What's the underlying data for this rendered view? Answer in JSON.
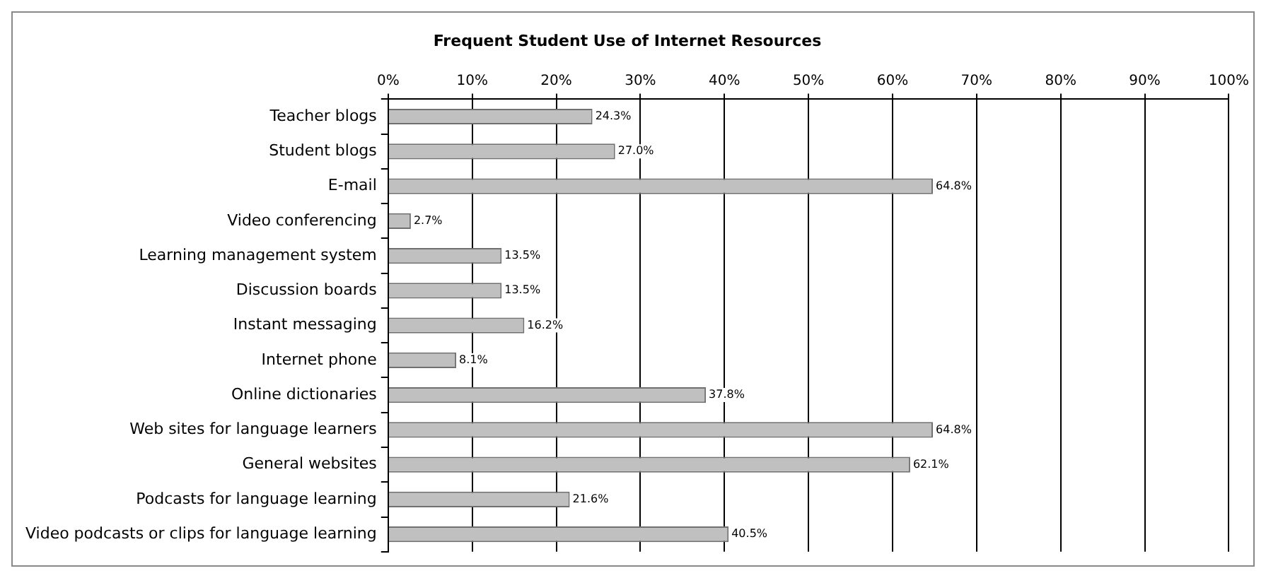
{
  "chart_data": {
    "type": "bar",
    "orientation": "horizontal",
    "title": "Frequent Student Use of Internet Resources",
    "categories": [
      "Teacher blogs",
      "Student blogs",
      "E-mail",
      "Video conferencing",
      "Learning management system",
      "Discussion boards",
      "Instant messaging",
      "Internet phone",
      "Online dictionaries",
      "Web sites for language learners",
      "General websites",
      "Podcasts for language learning",
      "Video podcasts or clips for language learning"
    ],
    "values": [
      24.3,
      27.0,
      64.8,
      2.7,
      13.5,
      13.5,
      16.2,
      8.1,
      37.8,
      64.8,
      62.1,
      21.6,
      40.5
    ],
    "value_labels": [
      "24.3%",
      "27.0%",
      "64.8%",
      "2.7%",
      "13.5%",
      "13.5%",
      "16.2%",
      "8.1%",
      "37.8%",
      "64.8%",
      "62.1%",
      "21.6%",
      "40.5%"
    ],
    "color": "#c0c0c0",
    "xlim": [
      0,
      100
    ],
    "xticks": [
      {
        "value": 0,
        "label": "0%"
      },
      {
        "value": 10,
        "label": "10%"
      },
      {
        "value": 20,
        "label": "20%"
      },
      {
        "value": 30,
        "label": "30%"
      },
      {
        "value": 40,
        "label": "40%"
      },
      {
        "value": 50,
        "label": "50%"
      },
      {
        "value": 60,
        "label": "60%"
      },
      {
        "value": 70,
        "label": "70%"
      },
      {
        "value": 80,
        "label": "80%"
      },
      {
        "value": 90,
        "label": "90%"
      },
      {
        "value": 100,
        "label": "100%"
      }
    ],
    "grid": "x",
    "legend": false
  }
}
